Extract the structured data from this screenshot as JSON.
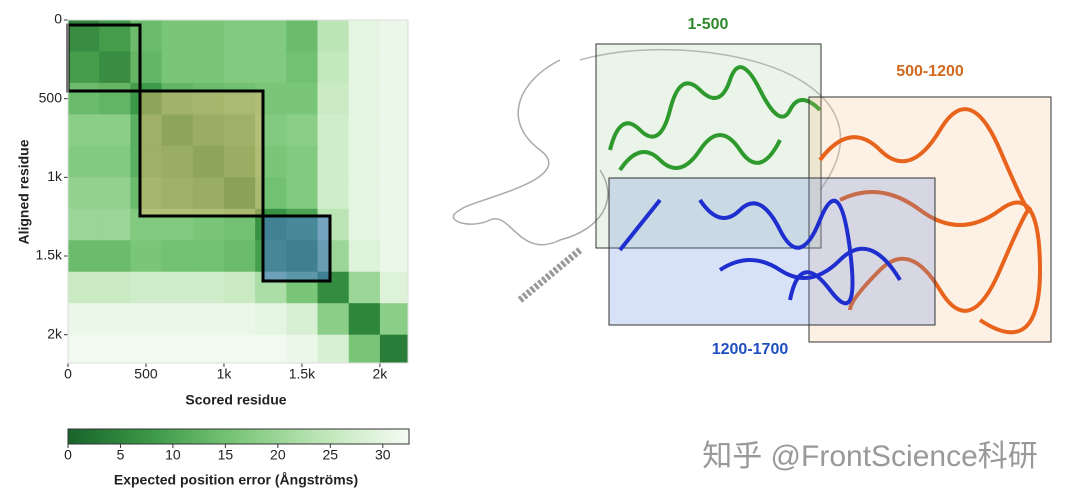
{
  "chart_data": {
    "type": "heatmap",
    "xlabel": "Scored residue",
    "ylabel": "Aligned residue",
    "xlim": [
      0,
      2180
    ],
    "ylim": [
      0,
      2180
    ],
    "xticks": [
      0,
      500,
      {
        "value": 1000,
        "label": "1k"
      },
      {
        "value": 1500,
        "label": "1.5k"
      },
      {
        "value": 2000,
        "label": "2k"
      }
    ],
    "yticks": [
      0,
      500,
      {
        "value": 1000,
        "label": "1k"
      },
      {
        "value": 1500,
        "label": "1.5k"
      },
      {
        "value": 2000,
        "label": "2k"
      }
    ],
    "bins": [
      0,
      200,
      400,
      600,
      800,
      1000,
      1200,
      1400,
      1600,
      1800,
      2000,
      2180
    ],
    "values": [
      [
        5,
        8,
        14,
        16,
        16,
        17,
        17,
        14,
        24,
        30,
        31
      ],
      [
        8,
        5,
        13,
        16,
        16,
        17,
        17,
        15,
        25,
        30,
        31
      ],
      [
        14,
        13,
        8,
        13,
        14,
        15,
        16,
        16,
        26,
        30,
        31
      ],
      [
        18,
        18,
        12,
        8,
        11,
        12,
        17,
        18,
        27,
        30,
        31
      ],
      [
        17,
        17,
        12,
        11,
        8,
        11,
        16,
        17,
        27,
        30,
        31
      ],
      [
        19,
        19,
        14,
        12,
        11,
        7,
        15,
        17,
        27,
        30,
        31
      ],
      [
        20,
        20,
        17,
        17,
        16,
        15,
        7,
        10,
        24,
        30,
        31
      ],
      [
        14,
        14,
        16,
        15,
        15,
        14,
        9,
        6,
        20,
        29,
        31
      ],
      [
        26,
        26,
        27,
        27,
        27,
        26,
        22,
        16,
        6,
        20,
        29
      ],
      [
        31,
        31,
        31,
        31,
        31,
        31,
        30,
        28,
        18,
        5,
        18
      ],
      [
        32,
        32,
        32,
        32,
        32,
        32,
        32,
        31,
        28,
        16,
        4
      ]
    ],
    "colorbar": {
      "label": "Expected position error (Ångströms)",
      "lim": [
        0,
        32.5
      ],
      "ticks": [
        0,
        5,
        10,
        15,
        20,
        25,
        30
      ],
      "colors": [
        "#17632a",
        "#3d9a48",
        "#7cc77a",
        "#bfe6b8",
        "#f5fbf3"
      ]
    }
  },
  "structure": {
    "labels": [
      "1-500",
      "500-1200",
      "1200-1700"
    ]
  },
  "watermark": "知乎 @FrontScience科研"
}
